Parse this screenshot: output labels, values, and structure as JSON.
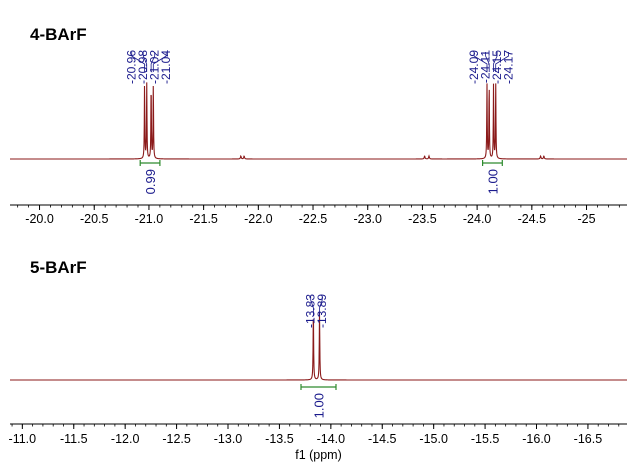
{
  "colors": {
    "spectrum": "#8b1a1a",
    "peak_label": "#1a1a8c",
    "integral": "#2e8b2e",
    "integral_value": "#1a1a8c",
    "axis": "#000000",
    "sample_label": "#000000"
  },
  "chart_data": [
    {
      "type": "line",
      "title": "4-BArF",
      "xlabel": "",
      "x_reversed": true,
      "xlim": [
        -19.73,
        -25.37
      ],
      "ticks": [
        -20.0,
        -20.5,
        -21.0,
        -21.5,
        -22.0,
        -22.5,
        -23.0,
        -23.5,
        -24.0,
        -24.5,
        -25.0
      ],
      "tick_labels": [
        "-20.0",
        "-20.5",
        "-21.0",
        "-21.5",
        "-22.0",
        "-22.5",
        "-23.0",
        "-23.5",
        "-24.0",
        "-24.5",
        "-25"
      ],
      "peaks": [
        {
          "ppm": -20.96,
          "label": "-20.96"
        },
        {
          "ppm": -20.98,
          "label": "-20.98"
        },
        {
          "ppm": -21.02,
          "label": "-21.02"
        },
        {
          "ppm": -21.04,
          "label": "-21.04"
        },
        {
          "ppm": -24.09,
          "label": "-24.09"
        },
        {
          "ppm": -24.11,
          "label": "-24.11"
        },
        {
          "ppm": -24.15,
          "label": "-24.15"
        },
        {
          "ppm": -24.17,
          "label": "-24.17"
        }
      ],
      "minor_peaks": [
        -21.84,
        -21.87,
        -23.52,
        -23.56,
        -24.58,
        -24.61
      ],
      "integrals": [
        {
          "from": -20.92,
          "to": -21.1,
          "value": "0.99"
        },
        {
          "from": -24.05,
          "to": -24.23,
          "value": "1.00"
        }
      ]
    },
    {
      "type": "line",
      "title": "5-BArF",
      "xlabel": "f1 (ppm)",
      "x_reversed": true,
      "xlim": [
        -10.88,
        -16.88
      ],
      "ticks": [
        -11.0,
        -11.5,
        -12.0,
        -12.5,
        -13.0,
        -13.5,
        -14.0,
        -14.5,
        -15.0,
        -15.5,
        -16.0,
        -16.5
      ],
      "tick_labels": [
        "-11.0",
        "-11.5",
        "-12.0",
        "-12.5",
        "-13.0",
        "-13.5",
        "-14.0",
        "-14.5",
        "-15.0",
        "-15.5",
        "-16.0",
        "-16.5"
      ],
      "peaks": [
        {
          "ppm": -13.83,
          "label": "-13.83"
        },
        {
          "ppm": -13.89,
          "label": "-13.89"
        }
      ],
      "minor_peaks": [],
      "integrals": [
        {
          "from": -13.71,
          "to": -14.05,
          "value": "1.00"
        }
      ]
    }
  ]
}
